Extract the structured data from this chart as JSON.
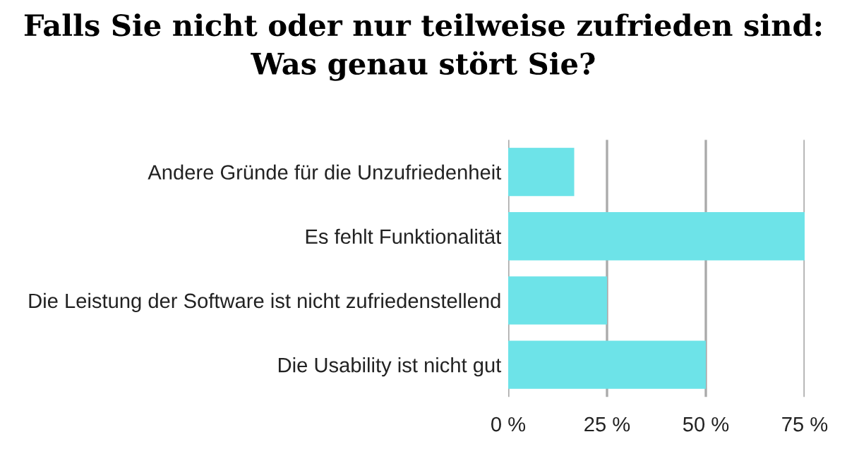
{
  "chart_data": {
    "type": "bar",
    "orientation": "horizontal",
    "title": "Falls Sie nicht oder nur teilweise zufrieden sind:\nWas genau stört Sie?",
    "categories": [
      "Andere Gründe für die Unzufriedenheit",
      "Es fehlt Funktionalität",
      "Die Leistung der Software ist nicht zufriedenstellend",
      "Die Usability ist nicht gut"
    ],
    "values": [
      16.7,
      75,
      25,
      50
    ],
    "color": "#6de3e8",
    "xlim": [
      0,
      75
    ],
    "xticks": [
      {
        "value": 0,
        "label": "0 %"
      },
      {
        "value": 25,
        "label": "25 %"
      },
      {
        "value": 50,
        "label": "50 %"
      },
      {
        "value": 75,
        "label": "75 %"
      }
    ],
    "grid": "x",
    "legend": false
  }
}
